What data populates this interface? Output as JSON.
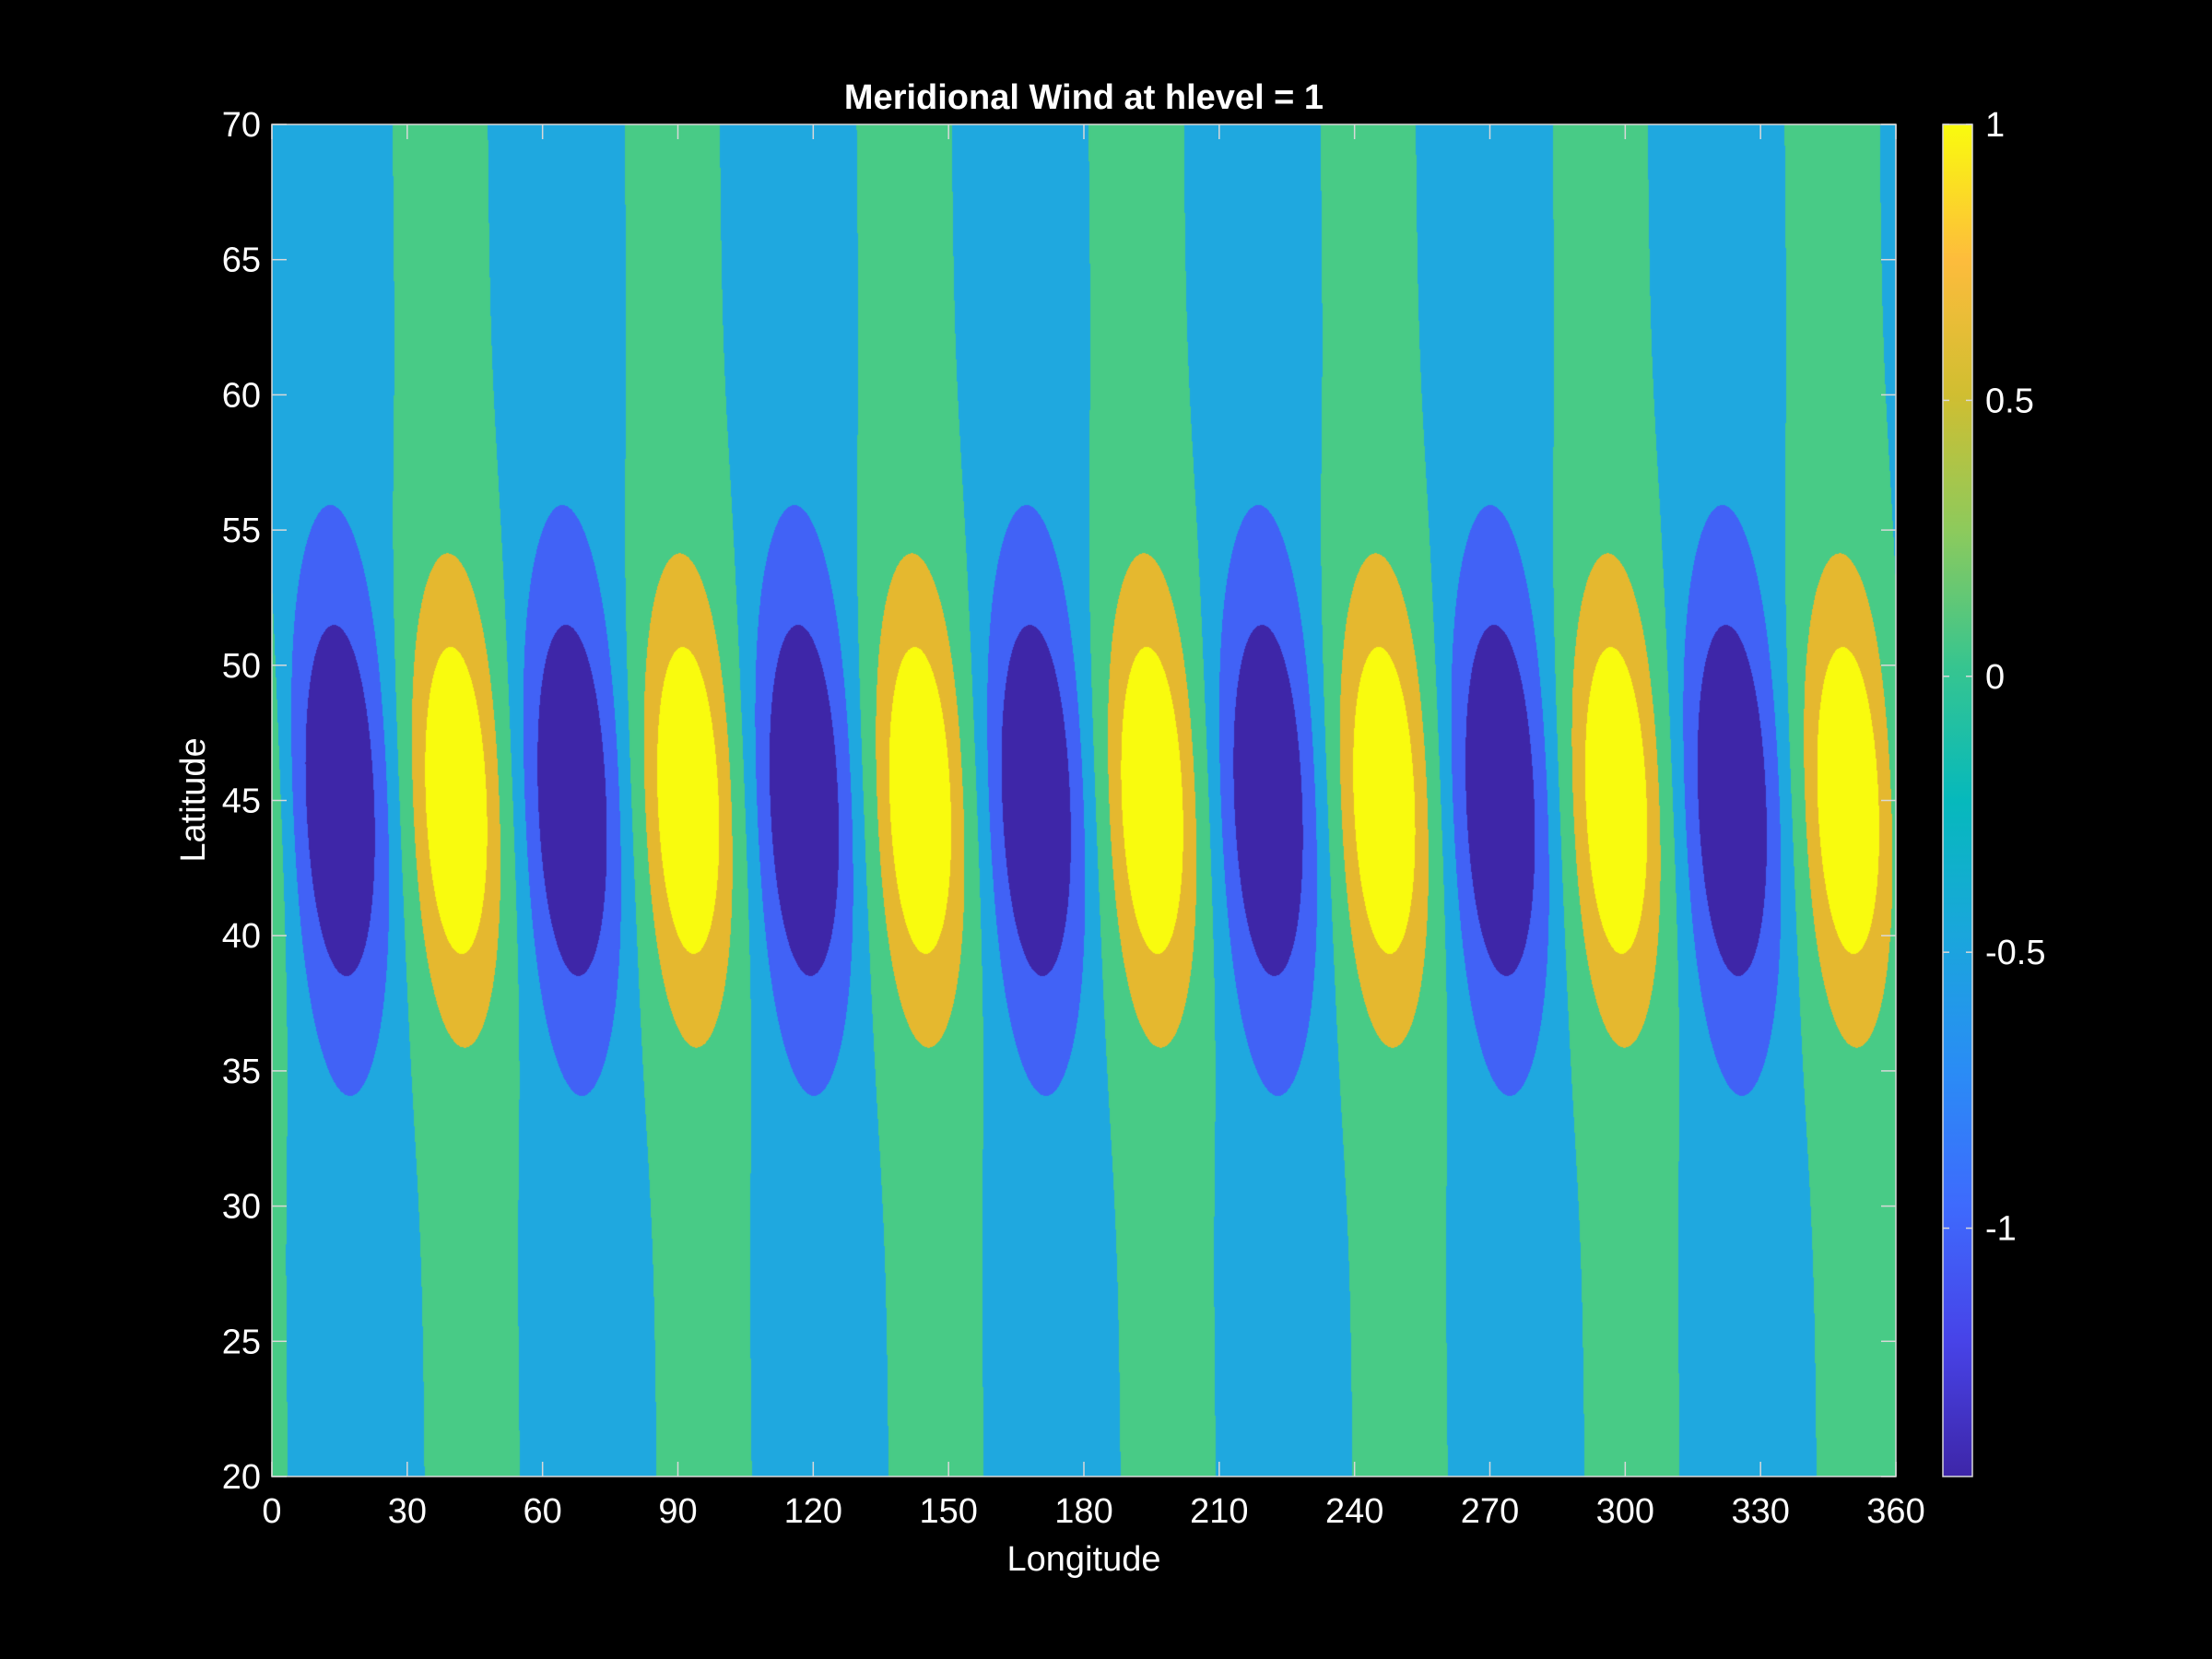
{
  "chart_data": {
    "type": "contour",
    "title": "Meridional Wind at hlevel = 1",
    "xlabel": "Longitude",
    "ylabel": "Latitude",
    "xlim": [
      0,
      360
    ],
    "ylim": [
      20,
      70
    ],
    "xticks": [
      "0",
      "30",
      "60",
      "90",
      "120",
      "150",
      "180",
      "210",
      "240",
      "270",
      "300",
      "330",
      "360"
    ],
    "yticks": [
      "20",
      "25",
      "30",
      "35",
      "40",
      "45",
      "50",
      "55",
      "60",
      "65",
      "70"
    ],
    "field": {
      "description_formula": "v = sin(7*lon) * (0.1 + 0.9*exp(-((lat-45)/7)^2)) style wave, 7 zonal wavenumber",
      "zonal_wavenumber": 7,
      "center_latitude": 45,
      "min": -1.45,
      "max": 1.0
    },
    "contour_levels": [
      -1.0,
      -0.5,
      0,
      0.5
    ],
    "colorbar": {
      "range": [
        -1.45,
        1.0
      ],
      "ticks": [
        "1",
        "0.5",
        "0",
        "-0.5",
        "-1"
      ],
      "tick_values": [
        1,
        0.5,
        0,
        -0.5,
        -1
      ],
      "colormap": "parula"
    },
    "fill_colors": {
      "below_-1": "#3e26a8",
      "-1_to_-0.5": "#4162f6",
      "-0.5_to_0": "#1fa8df",
      "0_to_0.5": "#48cb86",
      "0.5_to_1": "#e5b82f",
      "above_1": "#f9fb0e"
    },
    "grid": false
  },
  "colors": {
    "background": "#000000",
    "text": "#ffffff",
    "axis": "#d9d9d9"
  }
}
